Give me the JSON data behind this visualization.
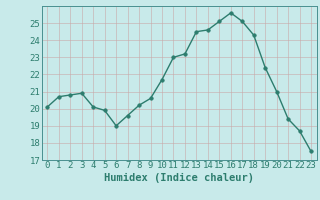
{
  "x": [
    0,
    1,
    2,
    3,
    4,
    5,
    6,
    7,
    8,
    9,
    10,
    11,
    12,
    13,
    14,
    15,
    16,
    17,
    18,
    19,
    20,
    21,
    22,
    23
  ],
  "y": [
    20.1,
    20.7,
    20.8,
    20.9,
    20.1,
    19.9,
    19.0,
    19.6,
    20.2,
    20.6,
    21.7,
    23.0,
    23.2,
    24.5,
    24.6,
    25.1,
    25.6,
    25.1,
    24.3,
    22.4,
    21.0,
    19.4,
    18.7,
    17.5
  ],
  "line_color": "#2d7d6e",
  "bg_color": "#c8eaea",
  "grid_color": "#b8d8d8",
  "xlabel": "Humidex (Indice chaleur)",
  "ylim": [
    17,
    26
  ],
  "yticks": [
    17,
    18,
    19,
    20,
    21,
    22,
    23,
    24,
    25
  ],
  "xticks": [
    0,
    1,
    2,
    3,
    4,
    5,
    6,
    7,
    8,
    9,
    10,
    11,
    12,
    13,
    14,
    15,
    16,
    17,
    18,
    19,
    20,
    21,
    22,
    23
  ],
  "marker": "o",
  "markersize": 2.5,
  "linewidth": 1.0,
  "xlabel_fontsize": 7.5,
  "tick_fontsize": 6.5,
  "tick_color": "#2d7d6e",
  "axis_color": "#2d7d6e",
  "spine_color": "#4a9090"
}
